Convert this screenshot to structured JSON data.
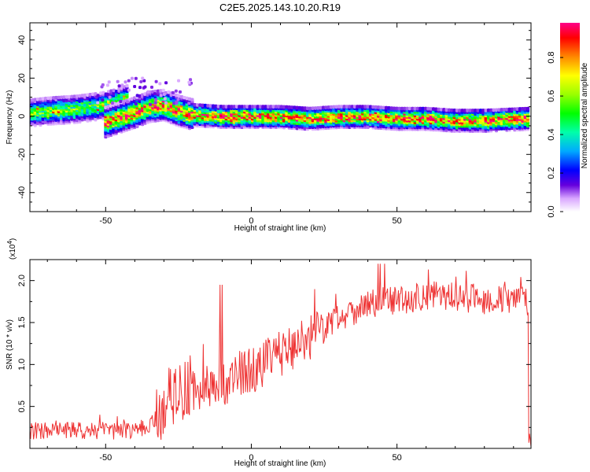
{
  "title": "C2E5.2025.143.10.20.R19",
  "chart_data": [
    {
      "type": "heatmap",
      "xlabel": "Height of straight line (km)",
      "ylabel": "Frequency (Hz)",
      "xlim": [
        -76,
        96
      ],
      "ylim": [
        -50,
        49
      ],
      "xticks": [
        -50,
        0,
        50
      ],
      "yticks": [
        -40,
        -20,
        0,
        20,
        40
      ],
      "colorbar": {
        "label": "Normalized spectral amplitude",
        "range": [
          0,
          0.98
        ],
        "ticks": [
          "0.0",
          "0.2",
          "0.4",
          "0.6",
          "0.8"
        ],
        "tick_values": [
          0,
          0.2,
          0.4,
          0.6,
          0.8
        ]
      },
      "ridges": [
        {
          "points": [
            [
              -76,
              2
            ],
            [
              -70,
              3
            ],
            [
              -60,
              4
            ],
            [
              -50,
              6
            ],
            [
              -45,
              8
            ],
            [
              -42,
              10
            ]
          ],
          "peak": 0.65
        },
        {
          "points": [
            [
              -50,
              -3
            ],
            [
              -40,
              2
            ],
            [
              -35,
              5
            ],
            [
              -30,
              6
            ],
            [
              -25,
              3
            ],
            [
              -20,
              1
            ],
            [
              -10,
              0
            ],
            [
              0,
              0
            ],
            [
              10,
              0
            ],
            [
              20,
              -1
            ],
            [
              30,
              0
            ],
            [
              40,
              0
            ],
            [
              50,
              -1
            ],
            [
              60,
              -1
            ],
            [
              70,
              -2
            ],
            [
              80,
              -2
            ],
            [
              95,
              -1
            ]
          ],
          "peak": 0.95
        }
      ]
    },
    {
      "type": "line",
      "xlabel": "Height of straight line (km)",
      "ylabel": "SNR (10 * v/v)",
      "multiplier": "(x10",
      "multiplier_exp": "4",
      "xlim": [
        -76,
        96
      ],
      "ylim": [
        0,
        2.25
      ],
      "xticks": [
        -50,
        0,
        50
      ],
      "yticks": [
        0.5,
        1.0,
        1.5,
        2.0
      ],
      "color": "#ee3333",
      "trend": [
        [
          -76,
          0.2
        ],
        [
          -40,
          0.2
        ],
        [
          -33,
          0.3
        ],
        [
          -28,
          0.6
        ],
        [
          -22,
          0.65
        ],
        [
          -12,
          0.7
        ],
        [
          -5,
          0.85
        ],
        [
          0,
          0.9
        ],
        [
          10,
          1.1
        ],
        [
          20,
          1.3
        ],
        [
          30,
          1.55
        ],
        [
          40,
          1.7
        ],
        [
          50,
          1.75
        ],
        [
          60,
          1.8
        ],
        [
          70,
          1.8
        ],
        [
          80,
          1.75
        ],
        [
          95,
          1.75
        ]
      ]
    }
  ]
}
